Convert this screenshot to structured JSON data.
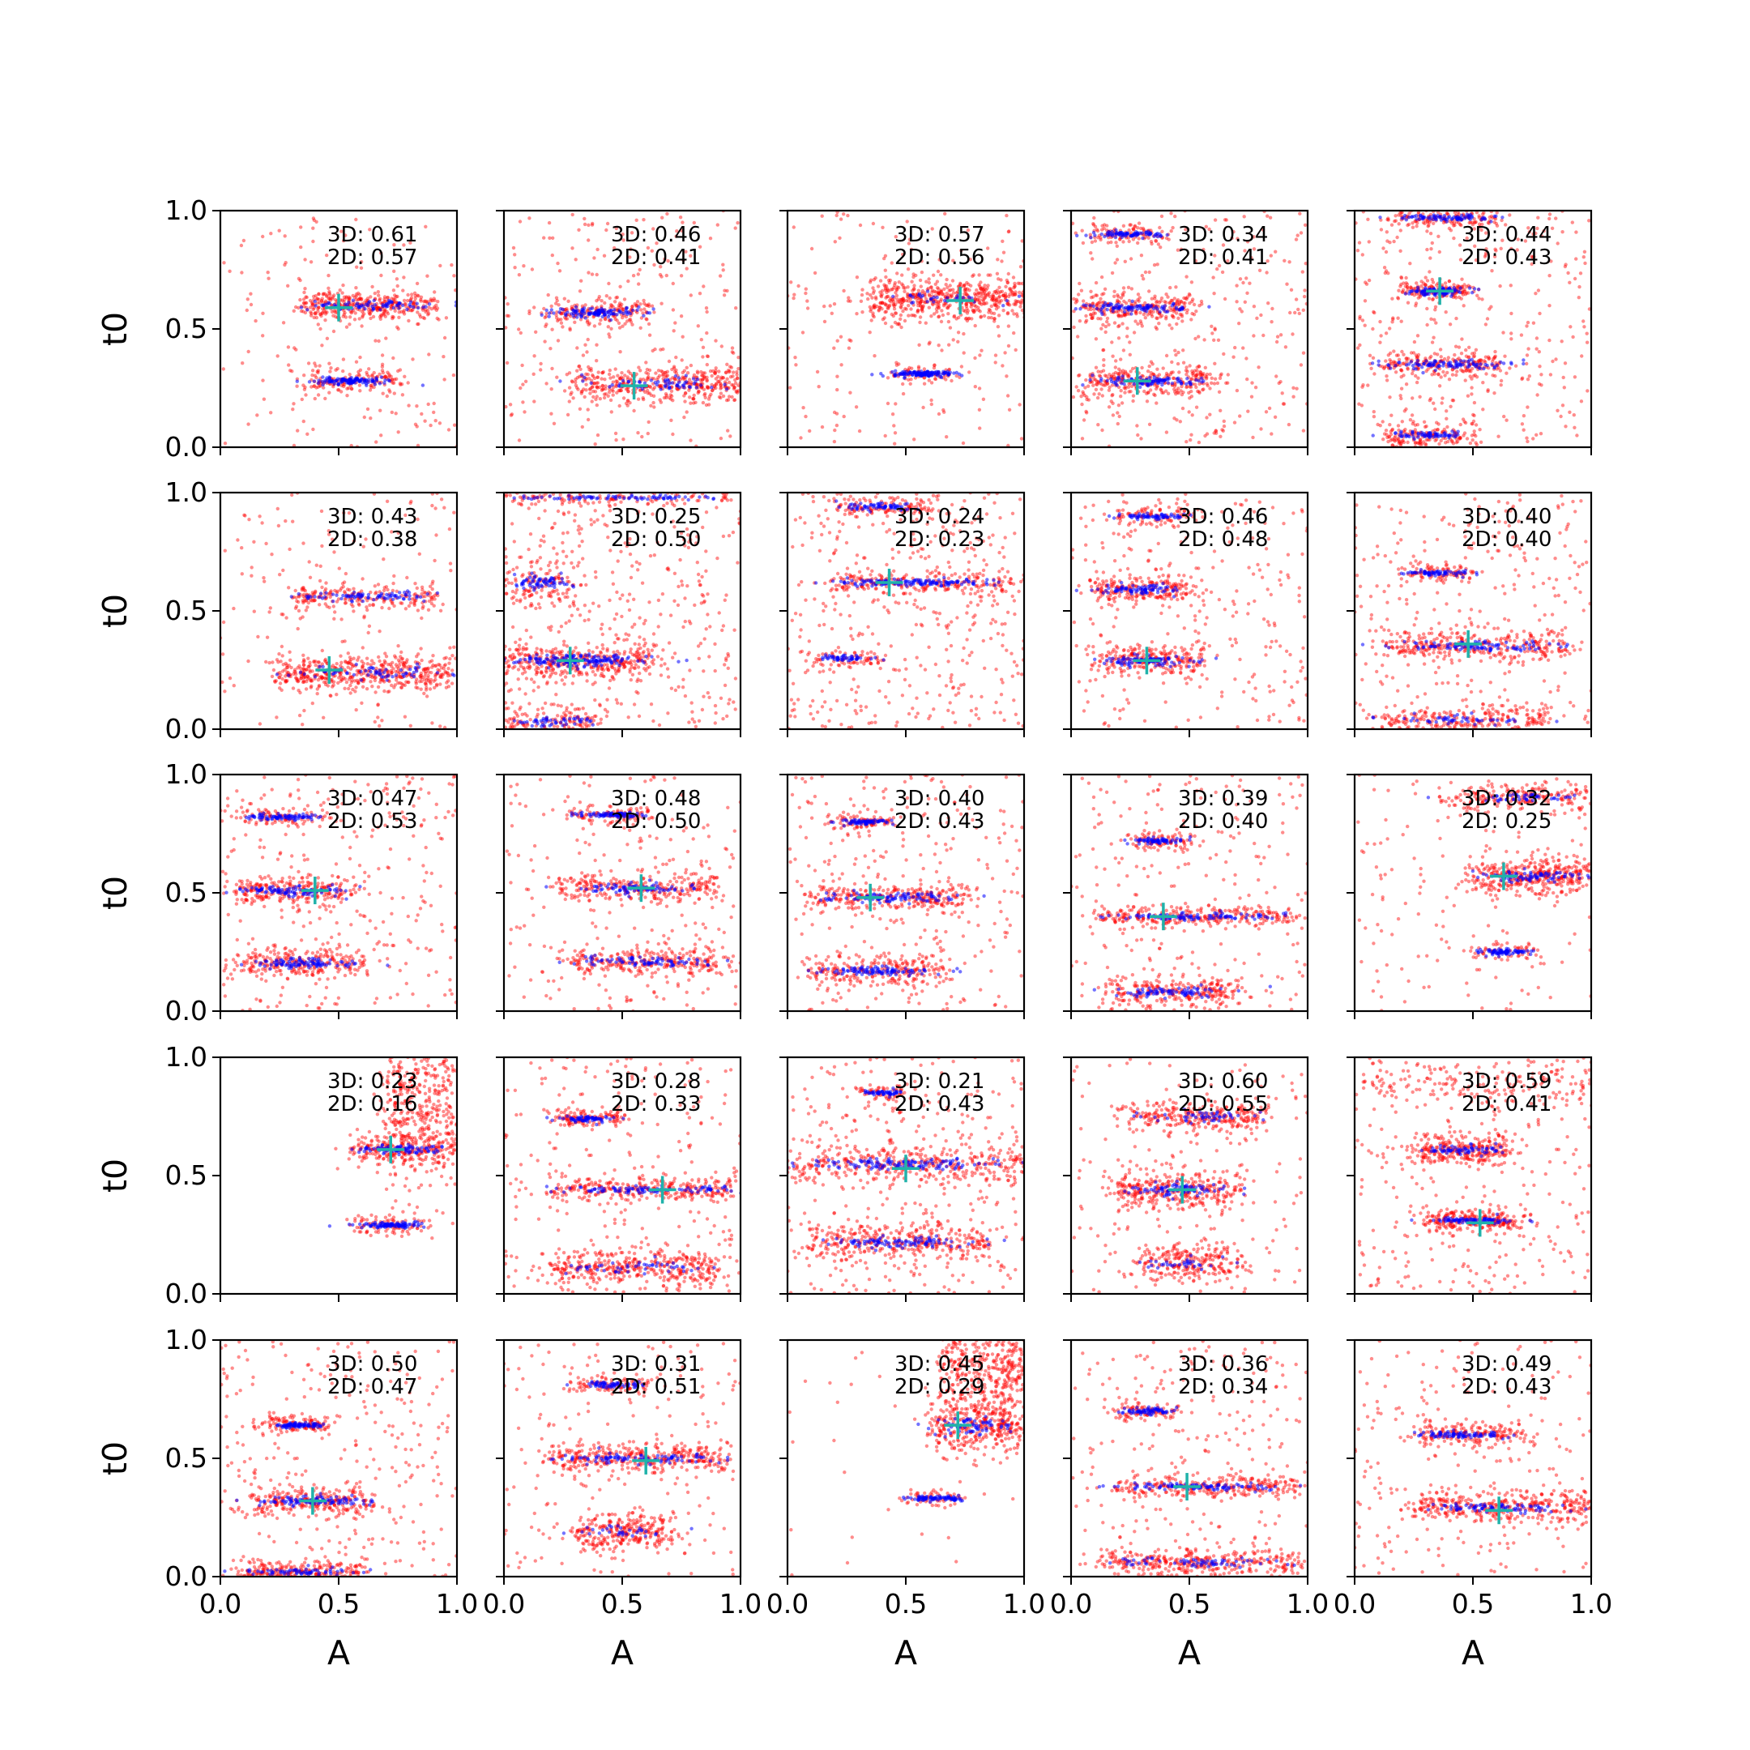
{
  "chart_data": {
    "type": "scatter",
    "grid": "off",
    "layout": {
      "rows": 5,
      "cols": 5
    },
    "xlabel": "A",
    "ylabel": "t0",
    "xlim": [
      0.0,
      1.0
    ],
    "ylim": [
      0.0,
      1.0
    ],
    "xticks": [
      "0.0",
      "0.5",
      "1.0"
    ],
    "yticks": [
      "0.0",
      "0.5",
      "1.0"
    ],
    "series_colors": {
      "red": "#ff0000",
      "blue": "#0000ff",
      "marker": "#20b2aa"
    },
    "panels": [
      {
        "score_3d": "3D: 0.61",
        "score_2d": "2D: 0.57",
        "marker": [
          0.5,
          0.59
        ],
        "clusters": [
          {
            "y": 0.6,
            "xs": 0.35,
            "xe": 0.9,
            "sy": 0.02,
            "red": 1.2,
            "blue": 0.5
          },
          {
            "y": 0.28,
            "xs": 0.36,
            "xe": 0.75,
            "sy": 0.015,
            "red": 0.5,
            "blue": 0.7
          }
        ],
        "bg": 0.6
      },
      {
        "score_3d": "3D: 0.46",
        "score_2d": "2D: 0.41",
        "marker": [
          0.55,
          0.26
        ],
        "clusters": [
          {
            "y": 0.57,
            "xs": 0.2,
            "xe": 0.6,
            "sy": 0.02,
            "red": 0.6,
            "blue": 0.7
          },
          {
            "y": 0.27,
            "xs": 0.3,
            "xe": 1.0,
            "sy": 0.025,
            "red": 1.4,
            "blue": 0.4
          }
        ],
        "bg": 0.9
      },
      {
        "score_3d": "3D: 0.57",
        "score_2d": "2D: 0.56",
        "marker": [
          0.73,
          0.62
        ],
        "clusters": [
          {
            "y": 0.63,
            "xs": 0.35,
            "xe": 1.0,
            "sy": 0.03,
            "red": 1.8,
            "blue": 0.2
          },
          {
            "y": 0.31,
            "xs": 0.43,
            "xe": 0.7,
            "sy": 0.012,
            "red": 0.2,
            "blue": 0.8
          }
        ],
        "bg": 0.7
      },
      {
        "score_3d": "3D: 0.34",
        "score_2d": "2D: 0.41",
        "marker": [
          0.28,
          0.28
        ],
        "clusters": [
          {
            "y": 0.9,
            "xs": 0.1,
            "xe": 0.4,
            "sy": 0.012,
            "red": 0.3,
            "blue": 0.5
          },
          {
            "y": 0.59,
            "xs": 0.05,
            "xe": 0.5,
            "sy": 0.02,
            "red": 0.8,
            "blue": 0.6
          },
          {
            "y": 0.28,
            "xs": 0.05,
            "xe": 0.6,
            "sy": 0.02,
            "red": 0.9,
            "blue": 0.6
          }
        ],
        "bg": 1.2
      },
      {
        "score_3d": "3D: 0.44",
        "score_2d": "2D: 0.43",
        "marker": [
          0.36,
          0.66
        ],
        "clusters": [
          {
            "y": 0.97,
            "xs": 0.15,
            "xe": 0.6,
            "sy": 0.012,
            "red": 0.5,
            "blue": 0.5
          },
          {
            "y": 0.66,
            "xs": 0.2,
            "xe": 0.5,
            "sy": 0.015,
            "red": 0.5,
            "blue": 0.6
          },
          {
            "y": 0.35,
            "xs": 0.1,
            "xe": 0.65,
            "sy": 0.02,
            "red": 0.7,
            "blue": 0.6
          },
          {
            "y": 0.05,
            "xs": 0.15,
            "xe": 0.5,
            "sy": 0.015,
            "red": 0.5,
            "blue": 0.4
          }
        ],
        "bg": 1.2
      },
      {
        "score_3d": "3D: 0.43",
        "score_2d": "2D: 0.38",
        "marker": [
          0.46,
          0.25
        ],
        "clusters": [
          {
            "y": 0.56,
            "xs": 0.3,
            "xe": 0.9,
            "sy": 0.02,
            "red": 0.7,
            "blue": 0.5
          },
          {
            "y": 0.24,
            "xs": 0.25,
            "xe": 1.0,
            "sy": 0.025,
            "red": 1.6,
            "blue": 0.4
          }
        ],
        "bg": 0.6
      },
      {
        "score_3d": "3D: 0.25",
        "score_2d": "2D: 0.50",
        "marker": [
          0.28,
          0.29
        ],
        "clusters": [
          {
            "y": 0.98,
            "xs": 0.0,
            "xe": 1.0,
            "sy": 0.01,
            "red": 0.4,
            "blue": 0.5
          },
          {
            "y": 0.62,
            "xs": 0.0,
            "xe": 0.3,
            "sy": 0.03,
            "red": 0.4,
            "blue": 0.4
          },
          {
            "y": 0.29,
            "xs": 0.0,
            "xe": 0.65,
            "sy": 0.025,
            "red": 1.2,
            "blue": 1.0
          },
          {
            "y": 0.03,
            "xs": 0.0,
            "xe": 0.4,
            "sy": 0.02,
            "red": 0.4,
            "blue": 0.3
          }
        ],
        "bg": 1.5
      },
      {
        "score_3d": "3D: 0.24",
        "score_2d": "2D: 0.23",
        "marker": [
          0.43,
          0.62
        ],
        "clusters": [
          {
            "y": 0.94,
            "xs": 0.2,
            "xe": 0.6,
            "sy": 0.015,
            "red": 0.4,
            "blue": 0.4
          },
          {
            "y": 0.62,
            "xs": 0.2,
            "xe": 0.95,
            "sy": 0.015,
            "red": 0.7,
            "blue": 0.8
          },
          {
            "y": 0.3,
            "xs": 0.1,
            "xe": 0.4,
            "sy": 0.012,
            "red": 0.2,
            "blue": 0.3
          }
        ],
        "bg": 1.6
      },
      {
        "score_3d": "3D: 0.46",
        "score_2d": "2D: 0.48",
        "marker": [
          0.32,
          0.29
        ],
        "clusters": [
          {
            "y": 0.9,
            "xs": 0.2,
            "xe": 0.5,
            "sy": 0.012,
            "red": 0.3,
            "blue": 0.4
          },
          {
            "y": 0.59,
            "xs": 0.1,
            "xe": 0.5,
            "sy": 0.02,
            "red": 0.7,
            "blue": 0.5
          },
          {
            "y": 0.29,
            "xs": 0.1,
            "xe": 0.55,
            "sy": 0.02,
            "red": 0.8,
            "blue": 0.6
          }
        ],
        "bg": 1.0
      },
      {
        "score_3d": "3D: 0.40",
        "score_2d": "2D: 0.40",
        "marker": [
          0.48,
          0.36
        ],
        "clusters": [
          {
            "y": 0.66,
            "xs": 0.2,
            "xe": 0.5,
            "sy": 0.012,
            "red": 0.3,
            "blue": 0.4
          },
          {
            "y": 0.35,
            "xs": 0.15,
            "xe": 0.9,
            "sy": 0.02,
            "red": 1.0,
            "blue": 0.6
          },
          {
            "y": 0.04,
            "xs": 0.1,
            "xe": 0.8,
            "sy": 0.02,
            "red": 0.8,
            "blue": 0.3
          }
        ],
        "bg": 1.1
      },
      {
        "score_3d": "3D: 0.47",
        "score_2d": "2D: 0.53",
        "marker": [
          0.4,
          0.51
        ],
        "clusters": [
          {
            "y": 0.82,
            "xs": 0.1,
            "xe": 0.45,
            "sy": 0.012,
            "red": 0.3,
            "blue": 0.5
          },
          {
            "y": 0.51,
            "xs": 0.05,
            "xe": 0.55,
            "sy": 0.02,
            "red": 0.8,
            "blue": 0.6
          },
          {
            "y": 0.2,
            "xs": 0.05,
            "xe": 0.6,
            "sy": 0.02,
            "red": 0.8,
            "blue": 0.6
          }
        ],
        "bg": 1.1
      },
      {
        "score_3d": "3D: 0.48",
        "score_2d": "2D: 0.50",
        "marker": [
          0.58,
          0.52
        ],
        "clusters": [
          {
            "y": 0.83,
            "xs": 0.3,
            "xe": 0.6,
            "sy": 0.012,
            "red": 0.3,
            "blue": 0.5
          },
          {
            "y": 0.52,
            "xs": 0.25,
            "xe": 0.9,
            "sy": 0.02,
            "red": 0.9,
            "blue": 0.5
          },
          {
            "y": 0.21,
            "xs": 0.25,
            "xe": 0.95,
            "sy": 0.02,
            "red": 0.9,
            "blue": 0.5
          }
        ],
        "bg": 0.8
      },
      {
        "score_3d": "3D: 0.40",
        "score_2d": "2D: 0.43",
        "marker": [
          0.35,
          0.48
        ],
        "clusters": [
          {
            "y": 0.8,
            "xs": 0.2,
            "xe": 0.45,
            "sy": 0.012,
            "red": 0.3,
            "blue": 0.4
          },
          {
            "y": 0.48,
            "xs": 0.1,
            "xe": 0.75,
            "sy": 0.02,
            "red": 0.9,
            "blue": 0.6
          },
          {
            "y": 0.17,
            "xs": 0.1,
            "xe": 0.65,
            "sy": 0.02,
            "red": 0.8,
            "blue": 0.6
          }
        ],
        "bg": 1.0
      },
      {
        "score_3d": "3D: 0.39",
        "score_2d": "2D: 0.40",
        "marker": [
          0.39,
          0.4
        ],
        "clusters": [
          {
            "y": 0.72,
            "xs": 0.25,
            "xe": 0.5,
            "sy": 0.012,
            "red": 0.3,
            "blue": 0.4
          },
          {
            "y": 0.4,
            "xs": 0.1,
            "xe": 0.95,
            "sy": 0.015,
            "red": 0.9,
            "blue": 0.6
          },
          {
            "y": 0.08,
            "xs": 0.15,
            "xe": 0.7,
            "sy": 0.02,
            "red": 0.8,
            "blue": 0.5
          }
        ],
        "bg": 0.9
      },
      {
        "score_3d": "3D: 0.32",
        "score_2d": "2D: 0.25",
        "marker": [
          0.63,
          0.57
        ],
        "clusters": [
          {
            "y": 0.9,
            "xs": 0.4,
            "xe": 1.0,
            "sy": 0.02,
            "red": 0.7,
            "blue": 0.3
          },
          {
            "y": 0.57,
            "xs": 0.5,
            "xe": 1.0,
            "sy": 0.025,
            "red": 1.3,
            "blue": 0.5
          },
          {
            "y": 0.25,
            "xs": 0.5,
            "xe": 0.75,
            "sy": 0.012,
            "red": 0.2,
            "blue": 0.5
          }
        ],
        "bg": 0.5
      },
      {
        "score_3d": "3D: 0.23",
        "score_2d": "2D: 0.16",
        "marker": [
          0.72,
          0.61
        ],
        "clusters": [
          {
            "y": 0.8,
            "xs": 0.7,
            "xe": 1.0,
            "sy": 0.12,
            "red": 1.6,
            "blue": 0.0
          },
          {
            "y": 0.61,
            "xs": 0.55,
            "xe": 1.0,
            "sy": 0.02,
            "red": 0.8,
            "blue": 0.5
          },
          {
            "y": 0.29,
            "xs": 0.55,
            "xe": 0.85,
            "sy": 0.012,
            "red": 0.3,
            "blue": 0.6
          }
        ],
        "bg": 0.0
      },
      {
        "score_3d": "3D: 0.28",
        "score_2d": "2D: 0.33",
        "marker": [
          0.67,
          0.44
        ],
        "clusters": [
          {
            "y": 0.74,
            "xs": 0.2,
            "xe": 0.5,
            "sy": 0.012,
            "red": 0.4,
            "blue": 0.4
          },
          {
            "y": 0.44,
            "xs": 0.2,
            "xe": 0.95,
            "sy": 0.015,
            "red": 0.9,
            "blue": 0.6
          },
          {
            "y": 0.11,
            "xs": 0.2,
            "xe": 0.9,
            "sy": 0.025,
            "red": 1.2,
            "blue": 0.3
          }
        ],
        "bg": 1.0
      },
      {
        "score_3d": "3D: 0.21",
        "score_2d": "2D: 0.43",
        "marker": [
          0.5,
          0.53
        ],
        "clusters": [
          {
            "y": 0.85,
            "xs": 0.3,
            "xe": 0.5,
            "sy": 0.012,
            "red": 0.2,
            "blue": 0.3
          },
          {
            "y": 0.55,
            "xs": 0.0,
            "xe": 1.0,
            "sy": 0.025,
            "red": 1.2,
            "blue": 0.8
          },
          {
            "y": 0.22,
            "xs": 0.1,
            "xe": 0.85,
            "sy": 0.025,
            "red": 1.1,
            "blue": 0.6
          }
        ],
        "bg": 1.3
      },
      {
        "score_3d": "3D: 0.60",
        "score_2d": "2D: 0.55",
        "marker": [
          0.47,
          0.44
        ],
        "clusters": [
          {
            "y": 0.75,
            "xs": 0.25,
            "xe": 0.8,
            "sy": 0.02,
            "red": 0.9,
            "blue": 0.3
          },
          {
            "y": 0.44,
            "xs": 0.2,
            "xe": 0.7,
            "sy": 0.025,
            "red": 1.1,
            "blue": 0.5
          },
          {
            "y": 0.13,
            "xs": 0.3,
            "xe": 0.7,
            "sy": 0.025,
            "red": 0.8,
            "blue": 0.2
          }
        ],
        "bg": 0.7
      },
      {
        "score_3d": "3D: 0.59",
        "score_2d": "2D: 0.41",
        "marker": [
          0.53,
          0.3
        ],
        "clusters": [
          {
            "y": 0.9,
            "xs": 0.0,
            "xe": 1.0,
            "sy": 0.03,
            "red": 0.6,
            "blue": 0.0
          },
          {
            "y": 0.61,
            "xs": 0.25,
            "xe": 0.65,
            "sy": 0.02,
            "red": 0.9,
            "blue": 0.4
          },
          {
            "y": 0.31,
            "xs": 0.3,
            "xe": 0.7,
            "sy": 0.015,
            "red": 0.8,
            "blue": 0.5
          }
        ],
        "bg": 1.0
      },
      {
        "score_3d": "3D: 0.50",
        "score_2d": "2D: 0.47",
        "marker": [
          0.39,
          0.32
        ],
        "clusters": [
          {
            "y": 0.64,
            "xs": 0.2,
            "xe": 0.45,
            "sy": 0.012,
            "red": 0.4,
            "blue": 0.5
          },
          {
            "y": 0.32,
            "xs": 0.15,
            "xe": 0.65,
            "sy": 0.02,
            "red": 0.8,
            "blue": 0.6
          },
          {
            "y": 0.02,
            "xs": 0.1,
            "xe": 0.6,
            "sy": 0.015,
            "red": 0.8,
            "blue": 0.4
          }
        ],
        "bg": 1.1
      },
      {
        "score_3d": "3D: 0.31",
        "score_2d": "2D: 0.51",
        "marker": [
          0.6,
          0.49
        ],
        "clusters": [
          {
            "y": 0.81,
            "xs": 0.3,
            "xe": 0.6,
            "sy": 0.012,
            "red": 0.3,
            "blue": 0.4
          },
          {
            "y": 0.5,
            "xs": 0.2,
            "xe": 0.95,
            "sy": 0.02,
            "red": 1.2,
            "blue": 0.6
          },
          {
            "y": 0.19,
            "xs": 0.3,
            "xe": 0.7,
            "sy": 0.025,
            "red": 0.9,
            "blue": 0.2
          }
        ],
        "bg": 0.7
      },
      {
        "score_3d": "3D: 0.45",
        "score_2d": "2D: 0.29",
        "marker": [
          0.72,
          0.64
        ],
        "clusters": [
          {
            "y": 0.9,
            "xs": 0.65,
            "xe": 1.0,
            "sy": 0.06,
            "red": 1.3,
            "blue": 0.0
          },
          {
            "y": 0.64,
            "xs": 0.6,
            "xe": 1.0,
            "sy": 0.04,
            "red": 1.3,
            "blue": 0.4
          },
          {
            "y": 0.33,
            "xs": 0.5,
            "xe": 0.75,
            "sy": 0.012,
            "red": 0.2,
            "blue": 0.5
          }
        ],
        "bg": 0.1
      },
      {
        "score_3d": "3D: 0.36",
        "score_2d": "2D: 0.34",
        "marker": [
          0.49,
          0.38
        ],
        "clusters": [
          {
            "y": 0.7,
            "xs": 0.2,
            "xe": 0.45,
            "sy": 0.012,
            "red": 0.3,
            "blue": 0.4
          },
          {
            "y": 0.38,
            "xs": 0.2,
            "xe": 0.95,
            "sy": 0.015,
            "red": 0.9,
            "blue": 0.6
          },
          {
            "y": 0.06,
            "xs": 0.15,
            "xe": 0.95,
            "sy": 0.02,
            "red": 1.1,
            "blue": 0.4
          }
        ],
        "bg": 0.9
      },
      {
        "score_3d": "3D: 0.49",
        "score_2d": "2D: 0.43",
        "marker": [
          0.61,
          0.28
        ],
        "clusters": [
          {
            "y": 0.6,
            "xs": 0.25,
            "xe": 0.7,
            "sy": 0.015,
            "red": 0.6,
            "blue": 0.5
          },
          {
            "y": 0.29,
            "xs": 0.25,
            "xe": 1.0,
            "sy": 0.02,
            "red": 1.2,
            "blue": 0.5
          }
        ],
        "bg": 0.9
      }
    ]
  }
}
